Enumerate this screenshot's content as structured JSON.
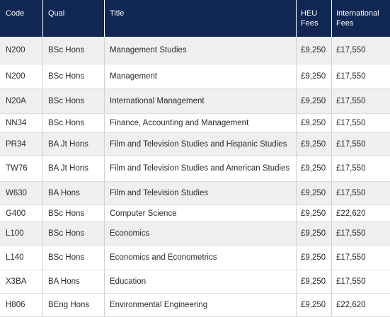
{
  "columns": {
    "code": "Code",
    "qual": "Qual",
    "title": "Title",
    "heu_line1": "HEU",
    "heu_line2": "Fees",
    "intl_line1": "International",
    "intl_line2": "Fees"
  },
  "rows": [
    {
      "code": "N200",
      "qual": "BSc Hons",
      "title": "Management Studies",
      "heu": "£9,250",
      "intl": "£17,550"
    },
    {
      "code": "N200",
      "qual": "BSc Hons",
      "title": "Management",
      "heu": "£9,250",
      "intl": "£17,550"
    },
    {
      "code": "N20A",
      "qual": "BSc Hons",
      "title": "International Management",
      "heu": "£9,250",
      "intl": "£17,550"
    },
    {
      "code": "NN34",
      "qual": "BSc Hons",
      "title": "Finance, Accounting and Management",
      "heu": "£9,250",
      "intl": "£17,550"
    },
    {
      "code": "PR34",
      "qual": "BA Jt Hons",
      "title": "Film and Television Studies and Hispanic Studies",
      "heu": "£9,250",
      "intl": "£17,550"
    },
    {
      "code": "TW76",
      "qual": "BA Jt Hons",
      "title": "Film and Television Studies and American Studies",
      "heu": "£9,250",
      "intl": "£17,550"
    },
    {
      "code": "W630",
      "qual": "BA Hons",
      "title": "Film and Television Studies",
      "heu": "£9,250",
      "intl": "£17,550"
    },
    {
      "code": "G400",
      "qual": "BSc Hons",
      "title": "Computer Science",
      "heu": "£9,250",
      "intl": "£22,620"
    },
    {
      "code": "L100",
      "qual": "BSc Hons",
      "title": "Economics",
      "heu": "£9,250",
      "intl": "£17,550"
    },
    {
      "code": "L140",
      "qual": "BSc Hons",
      "title": "Economics and Econometrics",
      "heu": "£9,250",
      "intl": "£17,550"
    },
    {
      "code": "X3BA",
      "qual": "BA Hons",
      "title": "Education",
      "heu": "£9,250",
      "intl": "£17,550"
    },
    {
      "code": "H806",
      "qual": "BEng Hons",
      "title": "Environmental Engineering",
      "heu": "£9,250",
      "intl": "£22,620"
    }
  ]
}
